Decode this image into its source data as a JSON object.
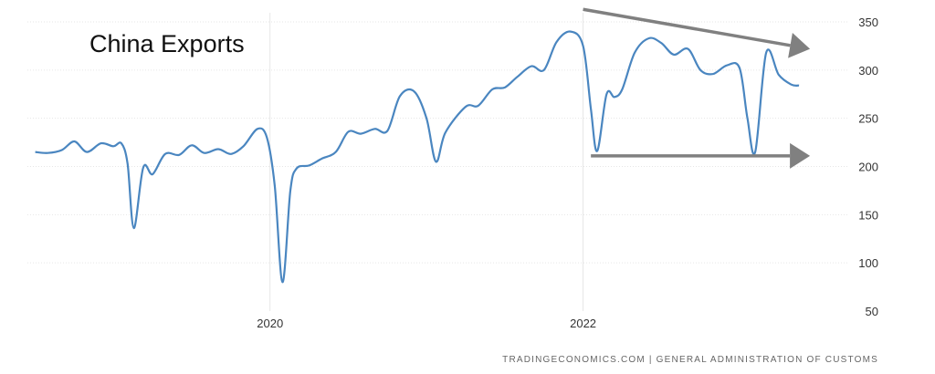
{
  "chart_data": {
    "type": "line",
    "title": "China Exports",
    "source": "TRADINGECONOMICS.COM  |  GENERAL ADMINISTRATION OF CUSTOMS",
    "xlabel": "",
    "ylabel": "",
    "ylim": [
      50,
      350
    ],
    "yticks": [
      50,
      100,
      150,
      200,
      250,
      300,
      350
    ],
    "xticks": [
      {
        "label": "2020",
        "t": 2020.0
      },
      {
        "label": "2022",
        "t": 2022.0
      }
    ],
    "xlim": [
      2018.45,
      2023.7
    ],
    "grid": true,
    "axis_side": "right",
    "series": [
      {
        "color": "#4a86c0",
        "points": [
          [
            2018.5,
            215
          ],
          [
            2018.58,
            214
          ],
          [
            2018.67,
            217
          ],
          [
            2018.75,
            226
          ],
          [
            2018.83,
            215
          ],
          [
            2018.92,
            224
          ],
          [
            2019.0,
            221
          ],
          [
            2019.05,
            224
          ],
          [
            2019.09,
            203
          ],
          [
            2019.13,
            136
          ],
          [
            2019.19,
            199
          ],
          [
            2019.25,
            192
          ],
          [
            2019.33,
            213
          ],
          [
            2019.42,
            212
          ],
          [
            2019.5,
            222
          ],
          [
            2019.58,
            214
          ],
          [
            2019.67,
            218
          ],
          [
            2019.75,
            213
          ],
          [
            2019.83,
            221
          ],
          [
            2019.92,
            239
          ],
          [
            2019.98,
            230
          ],
          [
            2020.03,
            180
          ],
          [
            2020.08,
            80
          ],
          [
            2020.13,
            175
          ],
          [
            2020.17,
            198
          ],
          [
            2020.25,
            201
          ],
          [
            2020.33,
            208
          ],
          [
            2020.42,
            215
          ],
          [
            2020.5,
            236
          ],
          [
            2020.58,
            234
          ],
          [
            2020.67,
            239
          ],
          [
            2020.75,
            237
          ],
          [
            2020.83,
            273
          ],
          [
            2020.92,
            278
          ],
          [
            2021.0,
            250
          ],
          [
            2021.06,
            205
          ],
          [
            2021.12,
            235
          ],
          [
            2021.25,
            262
          ],
          [
            2021.33,
            263
          ],
          [
            2021.42,
            280
          ],
          [
            2021.5,
            282
          ],
          [
            2021.58,
            293
          ],
          [
            2021.67,
            304
          ],
          [
            2021.75,
            300
          ],
          [
            2021.83,
            329
          ],
          [
            2021.92,
            340
          ],
          [
            2022.0,
            325
          ],
          [
            2022.05,
            260
          ],
          [
            2022.09,
            216
          ],
          [
            2022.15,
            275
          ],
          [
            2022.2,
            272
          ],
          [
            2022.25,
            280
          ],
          [
            2022.33,
            318
          ],
          [
            2022.42,
            333
          ],
          [
            2022.5,
            328
          ],
          [
            2022.58,
            316
          ],
          [
            2022.67,
            322
          ],
          [
            2022.75,
            300
          ],
          [
            2022.83,
            296
          ],
          [
            2022.92,
            305
          ],
          [
            2023.0,
            302
          ],
          [
            2023.05,
            250
          ],
          [
            2023.1,
            215
          ],
          [
            2023.17,
            318
          ],
          [
            2023.25,
            295
          ],
          [
            2023.33,
            285
          ],
          [
            2023.38,
            284
          ]
        ]
      }
    ],
    "annotations": [
      {
        "type": "arrow",
        "color": "#808080",
        "from": [
          2022.0,
          363
        ],
        "to": [
          2023.45,
          322
        ]
      },
      {
        "type": "arrow",
        "color": "#808080",
        "from": [
          2022.05,
          211
        ],
        "to": [
          2023.45,
          211
        ]
      }
    ]
  }
}
